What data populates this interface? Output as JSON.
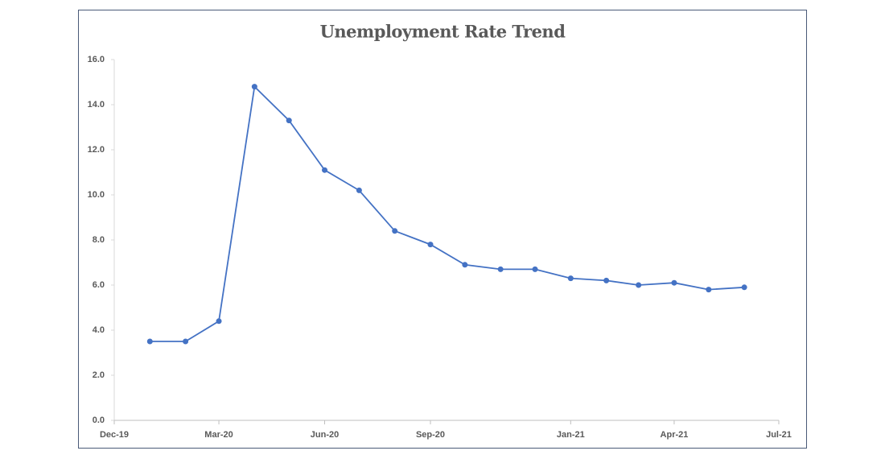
{
  "chart_data": {
    "type": "line",
    "title": "Unemployment Rate Trend",
    "x": [
      "2020-01",
      "2020-02",
      "2020-03",
      "2020-04",
      "2020-05",
      "2020-06",
      "2020-07",
      "2020-08",
      "2020-09",
      "2020-10",
      "2020-11",
      "2020-12",
      "2021-01",
      "2021-02",
      "2021-03",
      "2021-04",
      "2021-05",
      "2021-06"
    ],
    "values": [
      3.5,
      3.5,
      4.4,
      14.8,
      13.3,
      11.1,
      10.2,
      8.4,
      7.8,
      6.9,
      6.7,
      6.7,
      6.3,
      6.2,
      6.0,
      6.1,
      5.8,
      5.9
    ],
    "color": "#4472c4",
    "xlim": [
      "2019-12",
      "2021-07"
    ],
    "xticks": [
      {
        "value": "2019-12",
        "label": "Dec-19"
      },
      {
        "value": "2020-03",
        "label": "Mar-20"
      },
      {
        "value": "2020-06",
        "label": "Jun-20"
      },
      {
        "value": "2020-09",
        "label": "Sep-20"
      },
      {
        "value": "2021-01",
        "label": "Jan-21"
      },
      {
        "value": "2021-04",
        "label": "Apr-21"
      },
      {
        "value": "2021-07",
        "label": "Jul-21"
      }
    ],
    "ylim": [
      0,
      16
    ],
    "yticks": [
      {
        "value": 0,
        "label": "0.0"
      },
      {
        "value": 2,
        "label": "2.0"
      },
      {
        "value": 4,
        "label": "4.0"
      },
      {
        "value": 6,
        "label": "6.0"
      },
      {
        "value": 8,
        "label": "8.0"
      },
      {
        "value": 10,
        "label": "10.0"
      },
      {
        "value": 12,
        "label": "12.0"
      },
      {
        "value": 14,
        "label": "14.0"
      },
      {
        "value": 16,
        "label": "16.0"
      }
    ],
    "grid": false
  }
}
